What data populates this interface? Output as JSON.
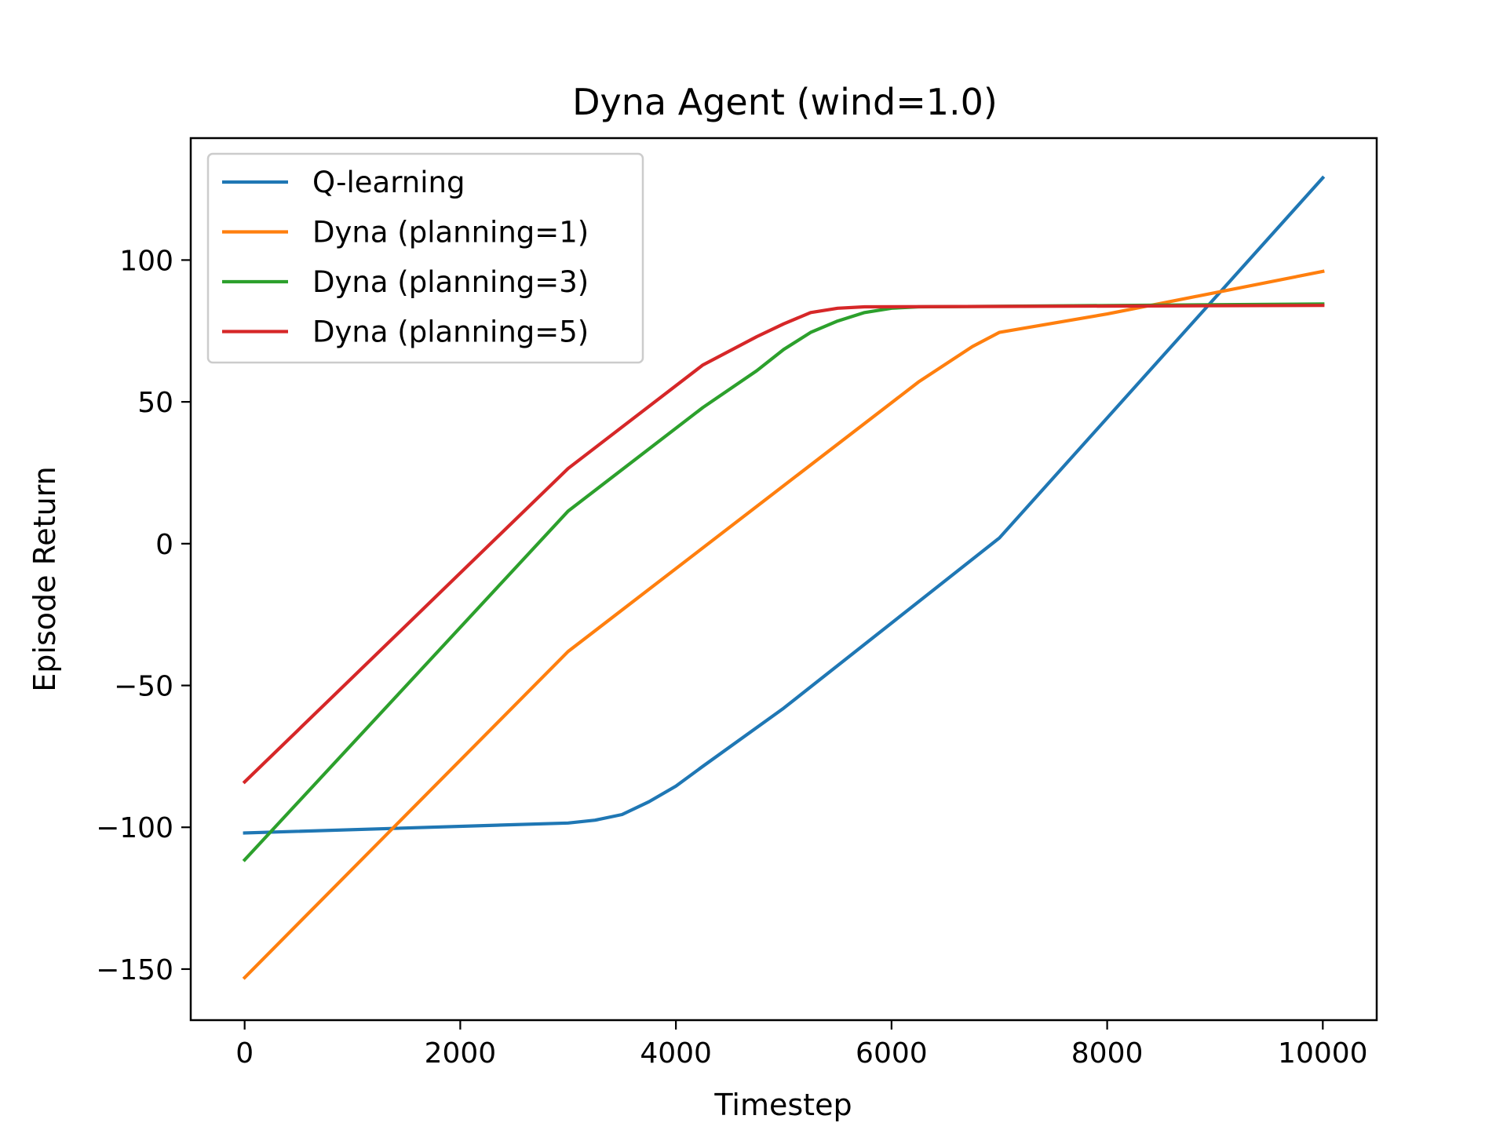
{
  "chart_data": {
    "type": "line",
    "title": "Dyna Agent (wind=1.0)",
    "xlabel": "Timestep",
    "ylabel": "Episode Return",
    "xlim": [
      -500,
      10500
    ],
    "ylim": [
      -168,
      143
    ],
    "x_ticks": [
      {
        "value": 0,
        "label": "0"
      },
      {
        "value": 2000,
        "label": "2000"
      },
      {
        "value": 4000,
        "label": "4000"
      },
      {
        "value": 6000,
        "label": "6000"
      },
      {
        "value": 8000,
        "label": "8000"
      },
      {
        "value": 10000,
        "label": "10000"
      }
    ],
    "y_ticks": [
      {
        "value": -150,
        "label": "−150"
      },
      {
        "value": -100,
        "label": "−100"
      },
      {
        "value": -50,
        "label": "−50"
      },
      {
        "value": 0,
        "label": "0"
      },
      {
        "value": 50,
        "label": "50"
      },
      {
        "value": 100,
        "label": "100"
      }
    ],
    "grid": false,
    "legend_position": "top-left",
    "series": [
      {
        "name": "Q-learning",
        "color": "#1f77b4",
        "points": [
          [
            0,
            -102
          ],
          [
            3000,
            -98.5
          ],
          [
            3250,
            -97.5
          ],
          [
            3500,
            -95.5
          ],
          [
            3750,
            -91
          ],
          [
            4000,
            -85.5
          ],
          [
            4250,
            -78.5
          ],
          [
            5000,
            -58
          ],
          [
            7000,
            2
          ],
          [
            10000,
            129
          ]
        ]
      },
      {
        "name": "Dyna (planning=1)",
        "color": "#ff7f0e",
        "points": [
          [
            0,
            -153
          ],
          [
            3000,
            -38
          ],
          [
            6250,
            57
          ],
          [
            6750,
            69.5
          ],
          [
            7000,
            74.5
          ],
          [
            8000,
            81
          ],
          [
            10000,
            96
          ]
        ]
      },
      {
        "name": "Dyna (planning=3)",
        "color": "#2ca02c",
        "points": [
          [
            0,
            -111.5
          ],
          [
            3000,
            11.5
          ],
          [
            4250,
            48
          ],
          [
            4750,
            61
          ],
          [
            5000,
            68.5
          ],
          [
            5250,
            74.5
          ],
          [
            5500,
            78.5
          ],
          [
            5750,
            81.5
          ],
          [
            6000,
            83
          ],
          [
            6250,
            83.5
          ],
          [
            10000,
            84.5
          ]
        ]
      },
      {
        "name": "Dyna (planning=5)",
        "color": "#d62728",
        "points": [
          [
            0,
            -84
          ],
          [
            3000,
            26.5
          ],
          [
            4250,
            63
          ],
          [
            4750,
            73
          ],
          [
            5000,
            77.5
          ],
          [
            5250,
            81.5
          ],
          [
            5500,
            83
          ],
          [
            5750,
            83.5
          ],
          [
            10000,
            84
          ]
        ]
      }
    ]
  }
}
